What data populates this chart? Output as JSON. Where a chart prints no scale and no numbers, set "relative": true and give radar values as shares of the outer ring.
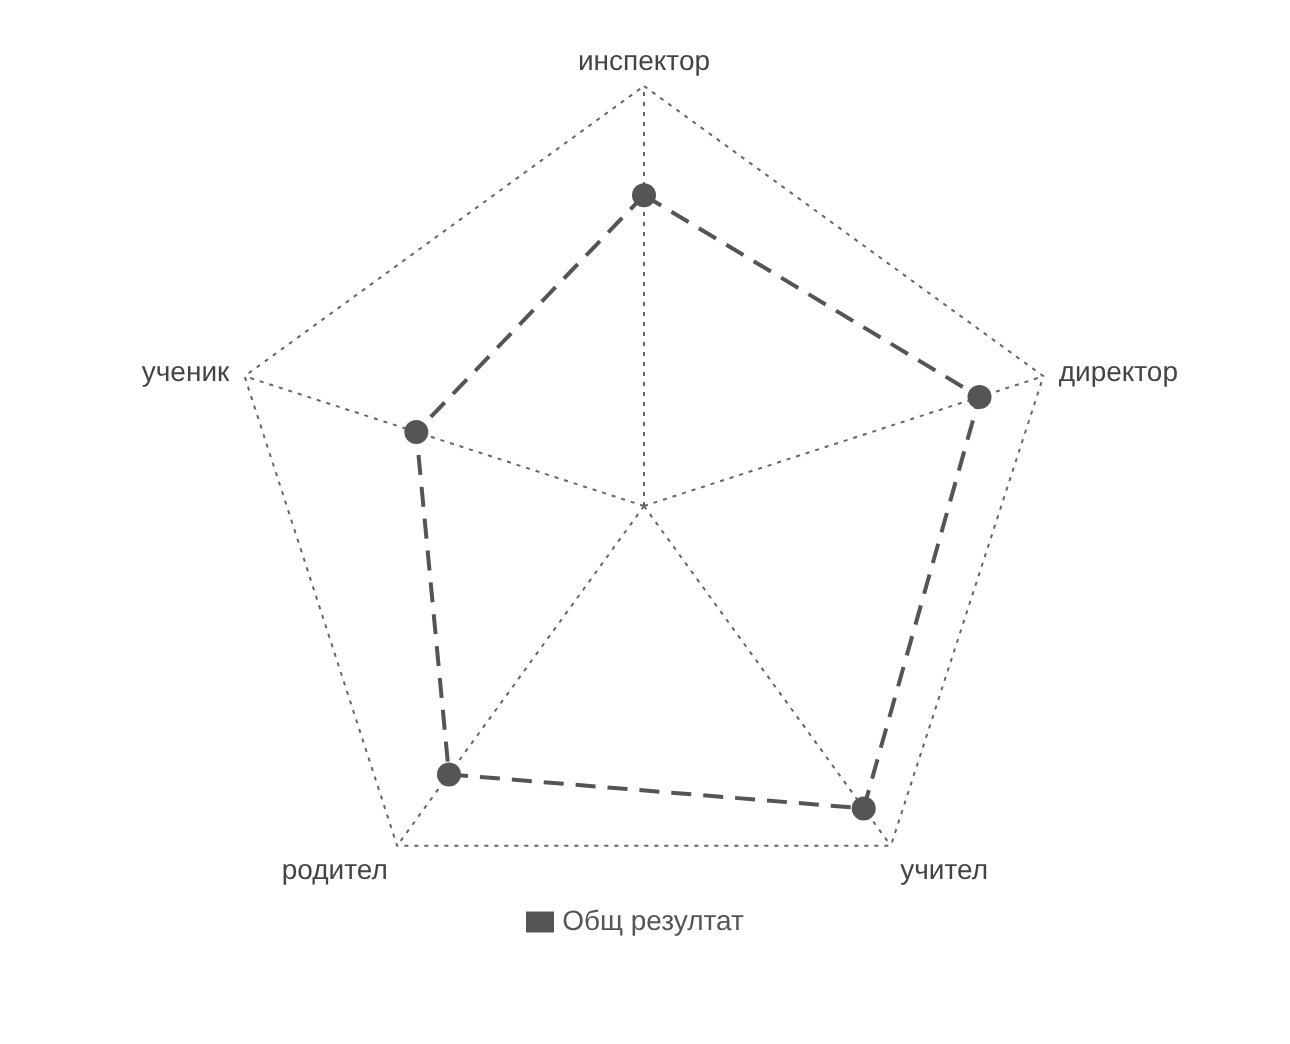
{
  "chart_data": {
    "type": "radar",
    "relative": true,
    "categories": [
      "инспектор",
      "директор",
      "учител",
      "родител",
      "ученик"
    ],
    "series": [
      {
        "name": "Общ резултат",
        "color": "#555555",
        "values": [
          0.74,
          0.84,
          0.89,
          0.79,
          0.57
        ]
      }
    ],
    "legend": "bottom",
    "marker": "circle",
    "line_style": "dashed",
    "grid": true
  }
}
